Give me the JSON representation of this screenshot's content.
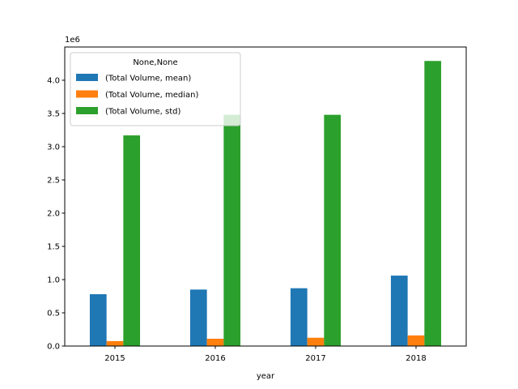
{
  "chart_data": {
    "type": "bar",
    "xlabel": "year",
    "ylabel": "",
    "categories": [
      "2015",
      "2016",
      "2017",
      "2018"
    ],
    "y_offset_text": "1e6",
    "y_scale": 1000000,
    "ylim": [
      0,
      4.5
    ],
    "y_ticks": [
      "0.0",
      "0.5",
      "1.0",
      "1.5",
      "2.0",
      "2.5",
      "3.0",
      "3.5",
      "4.0"
    ],
    "grid": false,
    "legend": {
      "title": "None,None",
      "placement": "upper-left",
      "entries": [
        "(Total Volume, mean)",
        "(Total Volume, median)",
        "(Total Volume, std)"
      ]
    },
    "series": [
      {
        "name": "(Total Volume, mean)",
        "color": "#1f77b4",
        "values": [
          780000,
          850000,
          870000,
          1060000
        ]
      },
      {
        "name": "(Total Volume, median)",
        "color": "#ff7f0e",
        "values": [
          75000,
          110000,
          125000,
          160000
        ]
      },
      {
        "name": "(Total Volume, std)",
        "color": "#2ca02c",
        "values": [
          3170000,
          3480000,
          3480000,
          4290000
        ]
      }
    ]
  }
}
